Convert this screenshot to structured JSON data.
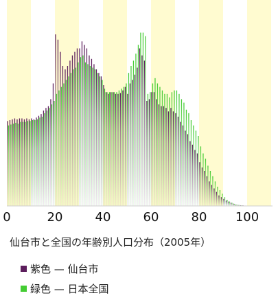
{
  "chart_data": {
    "type": "bar",
    "title": "仙台市と全国の年齢別人口分布（2005年）",
    "xlabel": "",
    "ylabel": "",
    "xlim": [
      0,
      110
    ],
    "x_ticks": [
      "0",
      "20",
      "40",
      "60",
      "80",
      "100"
    ],
    "ylim": [
      0,
      1.0
    ],
    "grid": false,
    "legend": {
      "position": "bottom"
    },
    "background_bands": [
      "#fffbd0",
      "#ffffff"
    ],
    "ages": [
      0,
      1,
      2,
      3,
      4,
      5,
      6,
      7,
      8,
      9,
      10,
      11,
      12,
      13,
      14,
      15,
      16,
      17,
      18,
      19,
      20,
      21,
      22,
      23,
      24,
      25,
      26,
      27,
      28,
      29,
      30,
      31,
      32,
      33,
      34,
      35,
      36,
      37,
      38,
      39,
      40,
      41,
      42,
      43,
      44,
      45,
      46,
      47,
      48,
      49,
      50,
      51,
      52,
      53,
      54,
      55,
      56,
      57,
      58,
      59,
      60,
      61,
      62,
      63,
      64,
      65,
      66,
      67,
      68,
      69,
      70,
      71,
      72,
      73,
      74,
      75,
      76,
      77,
      78,
      79,
      80,
      81,
      82,
      83,
      84,
      85,
      86,
      87,
      88,
      89,
      90,
      91,
      92,
      93,
      94,
      95,
      96,
      97,
      98,
      99,
      100
    ],
    "series": [
      {
        "name": "仙台市",
        "legend_label": "紫色 — 仙台市",
        "color": "#5c1e5c",
        "values": [
          0.485,
          0.49,
          0.495,
          0.5,
          0.495,
          0.5,
          0.5,
          0.495,
          0.5,
          0.495,
          0.5,
          0.495,
          0.505,
          0.515,
          0.525,
          0.545,
          0.56,
          0.57,
          0.61,
          0.7,
          0.98,
          0.95,
          0.88,
          0.8,
          0.78,
          0.8,
          0.83,
          0.86,
          0.88,
          0.9,
          0.9,
          0.94,
          0.92,
          0.9,
          0.86,
          0.84,
          0.81,
          0.78,
          0.76,
          0.74,
          0.69,
          0.65,
          0.64,
          0.65,
          0.65,
          0.64,
          0.64,
          0.645,
          0.66,
          0.68,
          0.64,
          0.7,
          0.72,
          0.75,
          0.79,
          0.9,
          0.86,
          0.83,
          0.6,
          0.61,
          0.65,
          0.65,
          0.61,
          0.58,
          0.57,
          0.57,
          0.56,
          0.54,
          0.56,
          0.54,
          0.53,
          0.51,
          0.48,
          0.46,
          0.43,
          0.41,
          0.37,
          0.35,
          0.32,
          0.3,
          0.25,
          0.22,
          0.2,
          0.17,
          0.14,
          0.12,
          0.1,
          0.08,
          0.06,
          0.05,
          0.04,
          0.03,
          0.025,
          0.018,
          0.013,
          0.008,
          0.005,
          0.004,
          0.003,
          0.002,
          0.001
        ]
      },
      {
        "name": "日本全国",
        "legend_label": "緑色 — 日本全国",
        "color": "#44cc33",
        "values": [
          0.46,
          0.465,
          0.47,
          0.475,
          0.47,
          0.48,
          0.48,
          0.48,
          0.485,
          0.485,
          0.49,
          0.49,
          0.495,
          0.505,
          0.51,
          0.53,
          0.545,
          0.56,
          0.58,
          0.6,
          0.64,
          0.66,
          0.68,
          0.7,
          0.72,
          0.74,
          0.76,
          0.78,
          0.79,
          0.82,
          0.85,
          0.86,
          0.82,
          0.81,
          0.8,
          0.79,
          0.78,
          0.76,
          0.74,
          0.72,
          0.67,
          0.65,
          0.65,
          0.65,
          0.65,
          0.65,
          0.66,
          0.67,
          0.68,
          0.7,
          0.76,
          0.8,
          0.83,
          0.87,
          0.92,
          0.99,
          0.99,
          0.97,
          0.64,
          0.65,
          0.7,
          0.73,
          0.7,
          0.68,
          0.66,
          0.64,
          0.64,
          0.62,
          0.65,
          0.66,
          0.66,
          0.64,
          0.61,
          0.59,
          0.55,
          0.53,
          0.49,
          0.46,
          0.43,
          0.4,
          0.34,
          0.3,
          0.27,
          0.23,
          0.2,
          0.17,
          0.14,
          0.11,
          0.09,
          0.07,
          0.05,
          0.035,
          0.025,
          0.018,
          0.012,
          0.008,
          0.005,
          0.003,
          0.002,
          0.001,
          0.001
        ]
      }
    ]
  }
}
